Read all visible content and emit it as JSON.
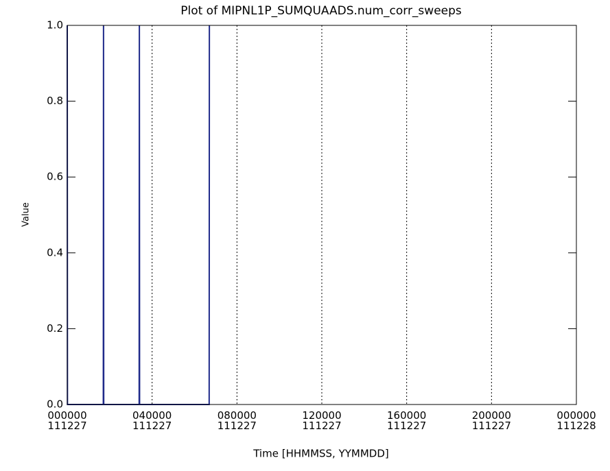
{
  "chart_data": {
    "type": "line",
    "title": "Plot of MIPNL1P_SUMQUAADS.num_corr_sweeps",
    "xlabel": "Time [HHMMSS, YYMMDD]",
    "ylabel": "Value",
    "series": [
      {
        "name": "num_corr_sweeps",
        "color": "#1f2a8a",
        "x": [
          0,
          0.01,
          1.7,
          1.71,
          1.72,
          3.39,
          3.4,
          3.41,
          6.69,
          6.7
        ],
        "values": [
          1,
          0,
          0,
          1,
          0,
          0,
          1,
          0,
          0,
          1
        ]
      }
    ],
    "xlim": [
      0,
      24
    ],
    "xticks": [
      {
        "value": 0,
        "label": "000000\n111227"
      },
      {
        "value": 4,
        "label": "040000\n111227"
      },
      {
        "value": 8,
        "label": "080000\n111227"
      },
      {
        "value": 12,
        "label": "120000\n111227"
      },
      {
        "value": 16,
        "label": "160000\n111227"
      },
      {
        "value": 20,
        "label": "200000\n111227"
      },
      {
        "value": 24,
        "label": "000000\n111228"
      }
    ],
    "ylim": [
      0,
      1
    ],
    "yticks": [
      {
        "value": 0,
        "label": "0.0"
      },
      0.2,
      0.4,
      0.6,
      0.8,
      {
        "value": 1,
        "label": "1.0"
      }
    ],
    "grid": true
  }
}
